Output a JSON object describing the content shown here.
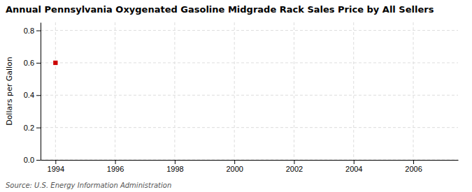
{
  "chart_data": {
    "type": "scatter",
    "title": "Annual Pennsylvania Oxygenated Gasoline Midgrade Rack Sales Price by All Sellers",
    "y_label": "Dollars per Gallon",
    "annotations": [
      "Source: U.S. Energy Information Administration"
    ],
    "x": [
      1994
    ],
    "values": [
      0.6
    ],
    "color": "#cc0000",
    "marker": "square",
    "xlim": [
      1993.5,
      2007.5
    ],
    "xticks": [
      1994,
      1996,
      1998,
      2000,
      2002,
      2004,
      2006
    ],
    "ylim": [
      0.0,
      0.85
    ],
    "yticks": [
      {
        "value": 0.0,
        "label": "0.0"
      },
      0.2,
      0.4,
      0.6,
      0.8
    ],
    "grid": true
  }
}
